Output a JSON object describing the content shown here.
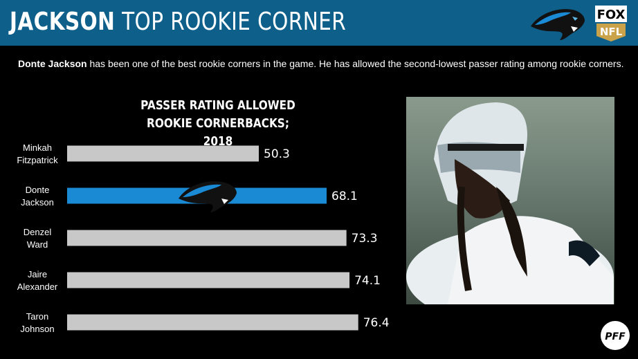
{
  "header": {
    "title_bold": "JACKSON",
    "title_rest": "TOP ROOKIE CORNER",
    "team_logo": "panthers-logo",
    "network_logo": "fox-nfl-badge",
    "network_text_top": "FOX",
    "network_text_bottom": "NFL",
    "colors": {
      "bar": "#0e5f8a"
    }
  },
  "subtitle": {
    "bold": "Donte Jackson",
    "rest": "has been one of the best rookie corners in the game. He has allowed the second-lowest passer rating among rookie corners."
  },
  "photo": {
    "alt": "player-photo"
  },
  "watermark": {
    "text": "PFF"
  },
  "chart_data": {
    "type": "bar",
    "orientation": "horizontal",
    "title": [
      "PASSER RATING ALLOWED",
      "ROOKIE CORNERBACKS; 2018"
    ],
    "categories": [
      [
        "Minkah",
        "Fitzpatrick"
      ],
      [
        "Donte",
        "Jackson"
      ],
      [
        "Denzel",
        "Ward"
      ],
      [
        "Jaire",
        "Alexander"
      ],
      [
        "Taron",
        "Johnson"
      ]
    ],
    "values": [
      50.3,
      68.1,
      73.3,
      74.1,
      76.4
    ],
    "value_labels": [
      "50.3",
      "68.1",
      "73.3",
      "74.1",
      "76.4"
    ],
    "highlight_index": 1,
    "colors": {
      "default": "#c8c8c8",
      "highlight": "#1a8ad4"
    },
    "grid": false
  }
}
